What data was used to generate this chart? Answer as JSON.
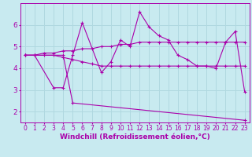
{
  "bg_color": "#c8eaf0",
  "grid_color": "#b0d8e0",
  "line_color": "#aa00aa",
  "marker": "+",
  "xlabel": "Windchill (Refroidissement éolien,°C)",
  "xlabel_fontsize": 6.5,
  "xtick_fontsize": 5.5,
  "ytick_fontsize": 6.5,
  "ylim": [
    1.5,
    7.0
  ],
  "xlim": [
    -0.5,
    23.5
  ],
  "yticks": [
    2,
    3,
    4,
    5,
    6
  ],
  "xticks": [
    0,
    1,
    2,
    3,
    4,
    5,
    6,
    7,
    8,
    9,
    10,
    11,
    12,
    13,
    14,
    15,
    16,
    17,
    18,
    19,
    20,
    21,
    22,
    23
  ],
  "series": [
    {
      "x": [
        0,
        1,
        2,
        3,
        4,
        5,
        6,
        7,
        8,
        9,
        10,
        11,
        12,
        13,
        14,
        15,
        16,
        17,
        18,
        19,
        20,
        21,
        22,
        23
      ],
      "y": [
        4.6,
        4.6,
        4.7,
        4.7,
        4.8,
        4.8,
        4.9,
        4.9,
        5.0,
        5.0,
        5.1,
        5.1,
        5.2,
        5.2,
        5.2,
        5.2,
        5.2,
        5.2,
        5.2,
        5.2,
        5.2,
        5.2,
        5.2,
        5.2
      ]
    },
    {
      "x": [
        0,
        1,
        2,
        3,
        4,
        5,
        6,
        7,
        8,
        9,
        10,
        11,
        12,
        13,
        14,
        15,
        16,
        17,
        18,
        19,
        20,
        21,
        22,
        23
      ],
      "y": [
        4.6,
        4.6,
        4.6,
        4.6,
        4.5,
        4.4,
        4.3,
        4.2,
        4.1,
        4.1,
        4.1,
        4.1,
        4.1,
        4.1,
        4.1,
        4.1,
        4.1,
        4.1,
        4.1,
        4.1,
        4.1,
        4.1,
        4.1,
        4.1
      ]
    },
    {
      "x": [
        0,
        1,
        3,
        4,
        5,
        6,
        8,
        9,
        10,
        11,
        12,
        13,
        14,
        15,
        16,
        17,
        18,
        19,
        20,
        21,
        22,
        23
      ],
      "y": [
        4.6,
        4.6,
        3.1,
        3.1,
        4.6,
        6.1,
        3.8,
        4.3,
        5.3,
        5.0,
        6.6,
        5.9,
        5.5,
        5.3,
        4.6,
        4.4,
        4.1,
        4.1,
        4.0,
        5.2,
        5.7,
        2.9
      ]
    },
    {
      "x": [
        0,
        4,
        5,
        23
      ],
      "y": [
        4.6,
        4.6,
        2.4,
        1.6
      ]
    }
  ]
}
